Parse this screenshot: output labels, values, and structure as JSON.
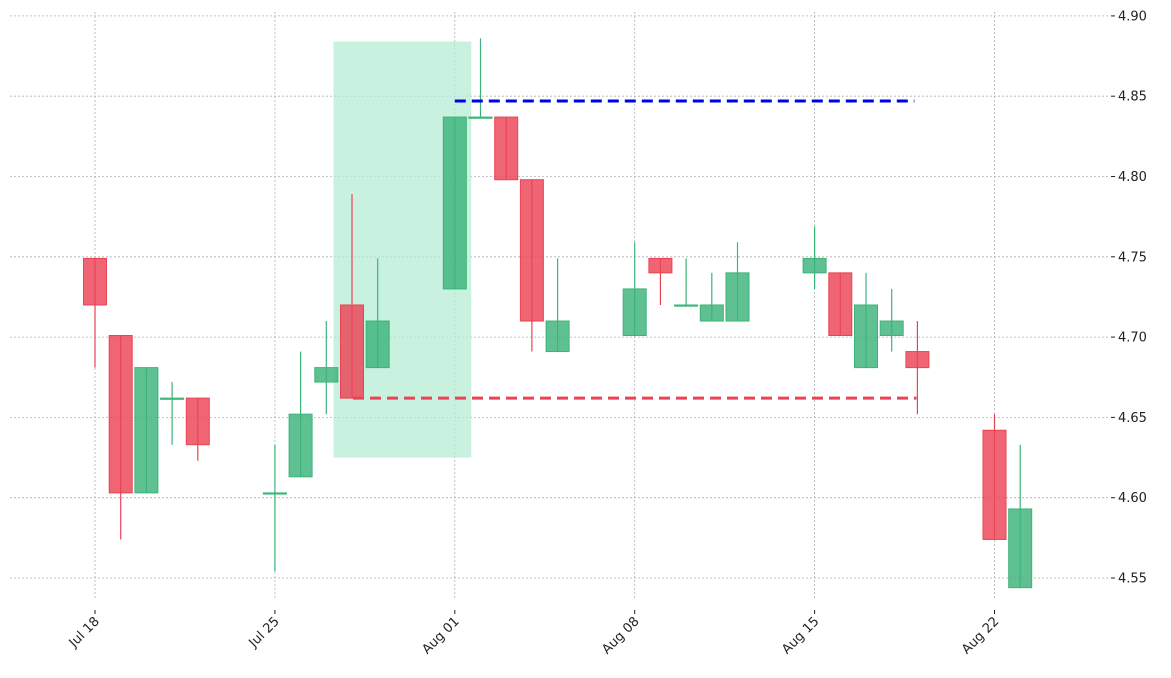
{
  "chart_data": {
    "type": "candlestick",
    "title": "",
    "xlabel": "",
    "ylabel": "",
    "ylim": [
      4.528,
      4.905
    ],
    "y_ticks": [
      4.55,
      4.6,
      4.65,
      4.7,
      4.75,
      4.8,
      4.85,
      4.9
    ],
    "y_tick_labels": [
      "4.55",
      "4.60",
      "4.65",
      "4.70",
      "4.75",
      "4.80",
      "4.85",
      "4.90"
    ],
    "x_ticks": [
      {
        "date": "2024-07-18",
        "label": "Jul 18"
      },
      {
        "date": "2024-07-25",
        "label": "Jul 25"
      },
      {
        "date": "2024-08-01",
        "label": "Aug 01"
      },
      {
        "date": "2024-08-08",
        "label": "Aug 08"
      },
      {
        "date": "2024-08-15",
        "label": "Aug 15"
      },
      {
        "date": "2024-08-22",
        "label": "Aug 22"
      }
    ],
    "grid": true,
    "y_axis_side": "right",
    "colors": {
      "up": "#3cb37a",
      "down": "#eb4355",
      "highlight": "#b5ecd6",
      "resistance": "#0000ee",
      "support": "#eb4355"
    },
    "candles": [
      {
        "date": "2024-07-18",
        "open": 4.749,
        "high": 4.749,
        "low": 4.681,
        "close": 4.72
      },
      {
        "date": "2024-07-19",
        "open": 4.701,
        "high": 4.701,
        "low": 4.574,
        "close": 4.603
      },
      {
        "date": "2024-07-20",
        "open": 4.603,
        "high": 4.681,
        "low": 4.603,
        "close": 4.681
      },
      {
        "date": "2024-07-21",
        "open": 4.662,
        "high": 4.672,
        "low": 4.633,
        "close": 4.662
      },
      {
        "date": "2024-07-22",
        "open": 4.662,
        "high": 4.662,
        "low": 4.623,
        "close": 4.633
      },
      {
        "date": "2024-07-25",
        "open": 4.603,
        "high": 4.633,
        "low": 4.554,
        "close": 4.603
      },
      {
        "date": "2024-07-26",
        "open": 4.613,
        "high": 4.691,
        "low": 4.613,
        "close": 4.652
      },
      {
        "date": "2024-07-27",
        "open": 4.672,
        "high": 4.71,
        "low": 4.652,
        "close": 4.681
      },
      {
        "date": "2024-07-28",
        "open": 4.72,
        "high": 4.789,
        "low": 4.662,
        "close": 4.662
      },
      {
        "date": "2024-07-29",
        "open": 4.681,
        "high": 4.749,
        "low": 4.681,
        "close": 4.71
      },
      {
        "date": "2024-08-01",
        "open": 4.73,
        "high": 4.837,
        "low": 4.73,
        "close": 4.837
      },
      {
        "date": "2024-08-02",
        "open": 4.837,
        "high": 4.886,
        "low": 4.837,
        "close": 4.837
      },
      {
        "date": "2024-08-03",
        "open": 4.837,
        "high": 4.837,
        "low": 4.798,
        "close": 4.798
      },
      {
        "date": "2024-08-04",
        "open": 4.798,
        "high": 4.798,
        "low": 4.691,
        "close": 4.71
      },
      {
        "date": "2024-08-05",
        "open": 4.691,
        "high": 4.749,
        "low": 4.691,
        "close": 4.71
      },
      {
        "date": "2024-08-08",
        "open": 4.701,
        "high": 4.759,
        "low": 4.701,
        "close": 4.73
      },
      {
        "date": "2024-08-09",
        "open": 4.749,
        "high": 4.749,
        "low": 4.72,
        "close": 4.74
      },
      {
        "date": "2024-08-10",
        "open": 4.72,
        "high": 4.749,
        "low": 4.72,
        "close": 4.72
      },
      {
        "date": "2024-08-11",
        "open": 4.71,
        "high": 4.74,
        "low": 4.71,
        "close": 4.72
      },
      {
        "date": "2024-08-12",
        "open": 4.71,
        "high": 4.759,
        "low": 4.71,
        "close": 4.74
      },
      {
        "date": "2024-08-15",
        "open": 4.74,
        "high": 4.769,
        "low": 4.73,
        "close": 4.749
      },
      {
        "date": "2024-08-16",
        "open": 4.74,
        "high": 4.74,
        "low": 4.701,
        "close": 4.701
      },
      {
        "date": "2024-08-17",
        "open": 4.681,
        "high": 4.74,
        "low": 4.681,
        "close": 4.72
      },
      {
        "date": "2024-08-18",
        "open": 4.701,
        "high": 4.73,
        "low": 4.691,
        "close": 4.71
      },
      {
        "date": "2024-08-19",
        "open": 4.691,
        "high": 4.71,
        "low": 4.652,
        "close": 4.681
      },
      {
        "date": "2024-08-22",
        "open": 4.642,
        "high": 4.652,
        "low": 4.574,
        "close": 4.574
      },
      {
        "date": "2024-08-23",
        "open": 4.544,
        "high": 4.633,
        "low": 4.544,
        "close": 4.593
      }
    ],
    "pattern_highlight": {
      "start_date": "2024-07-28",
      "end_date": "2024-08-01",
      "y_min": 4.625,
      "y_max": 4.884
    },
    "resistance_line": {
      "y": 4.847,
      "start_date": "2024-08-01",
      "end_date": "2024-08-19"
    },
    "support_line": {
      "y": 4.662,
      "start_date": "2024-07-28",
      "end_date": "2024-08-19"
    }
  }
}
